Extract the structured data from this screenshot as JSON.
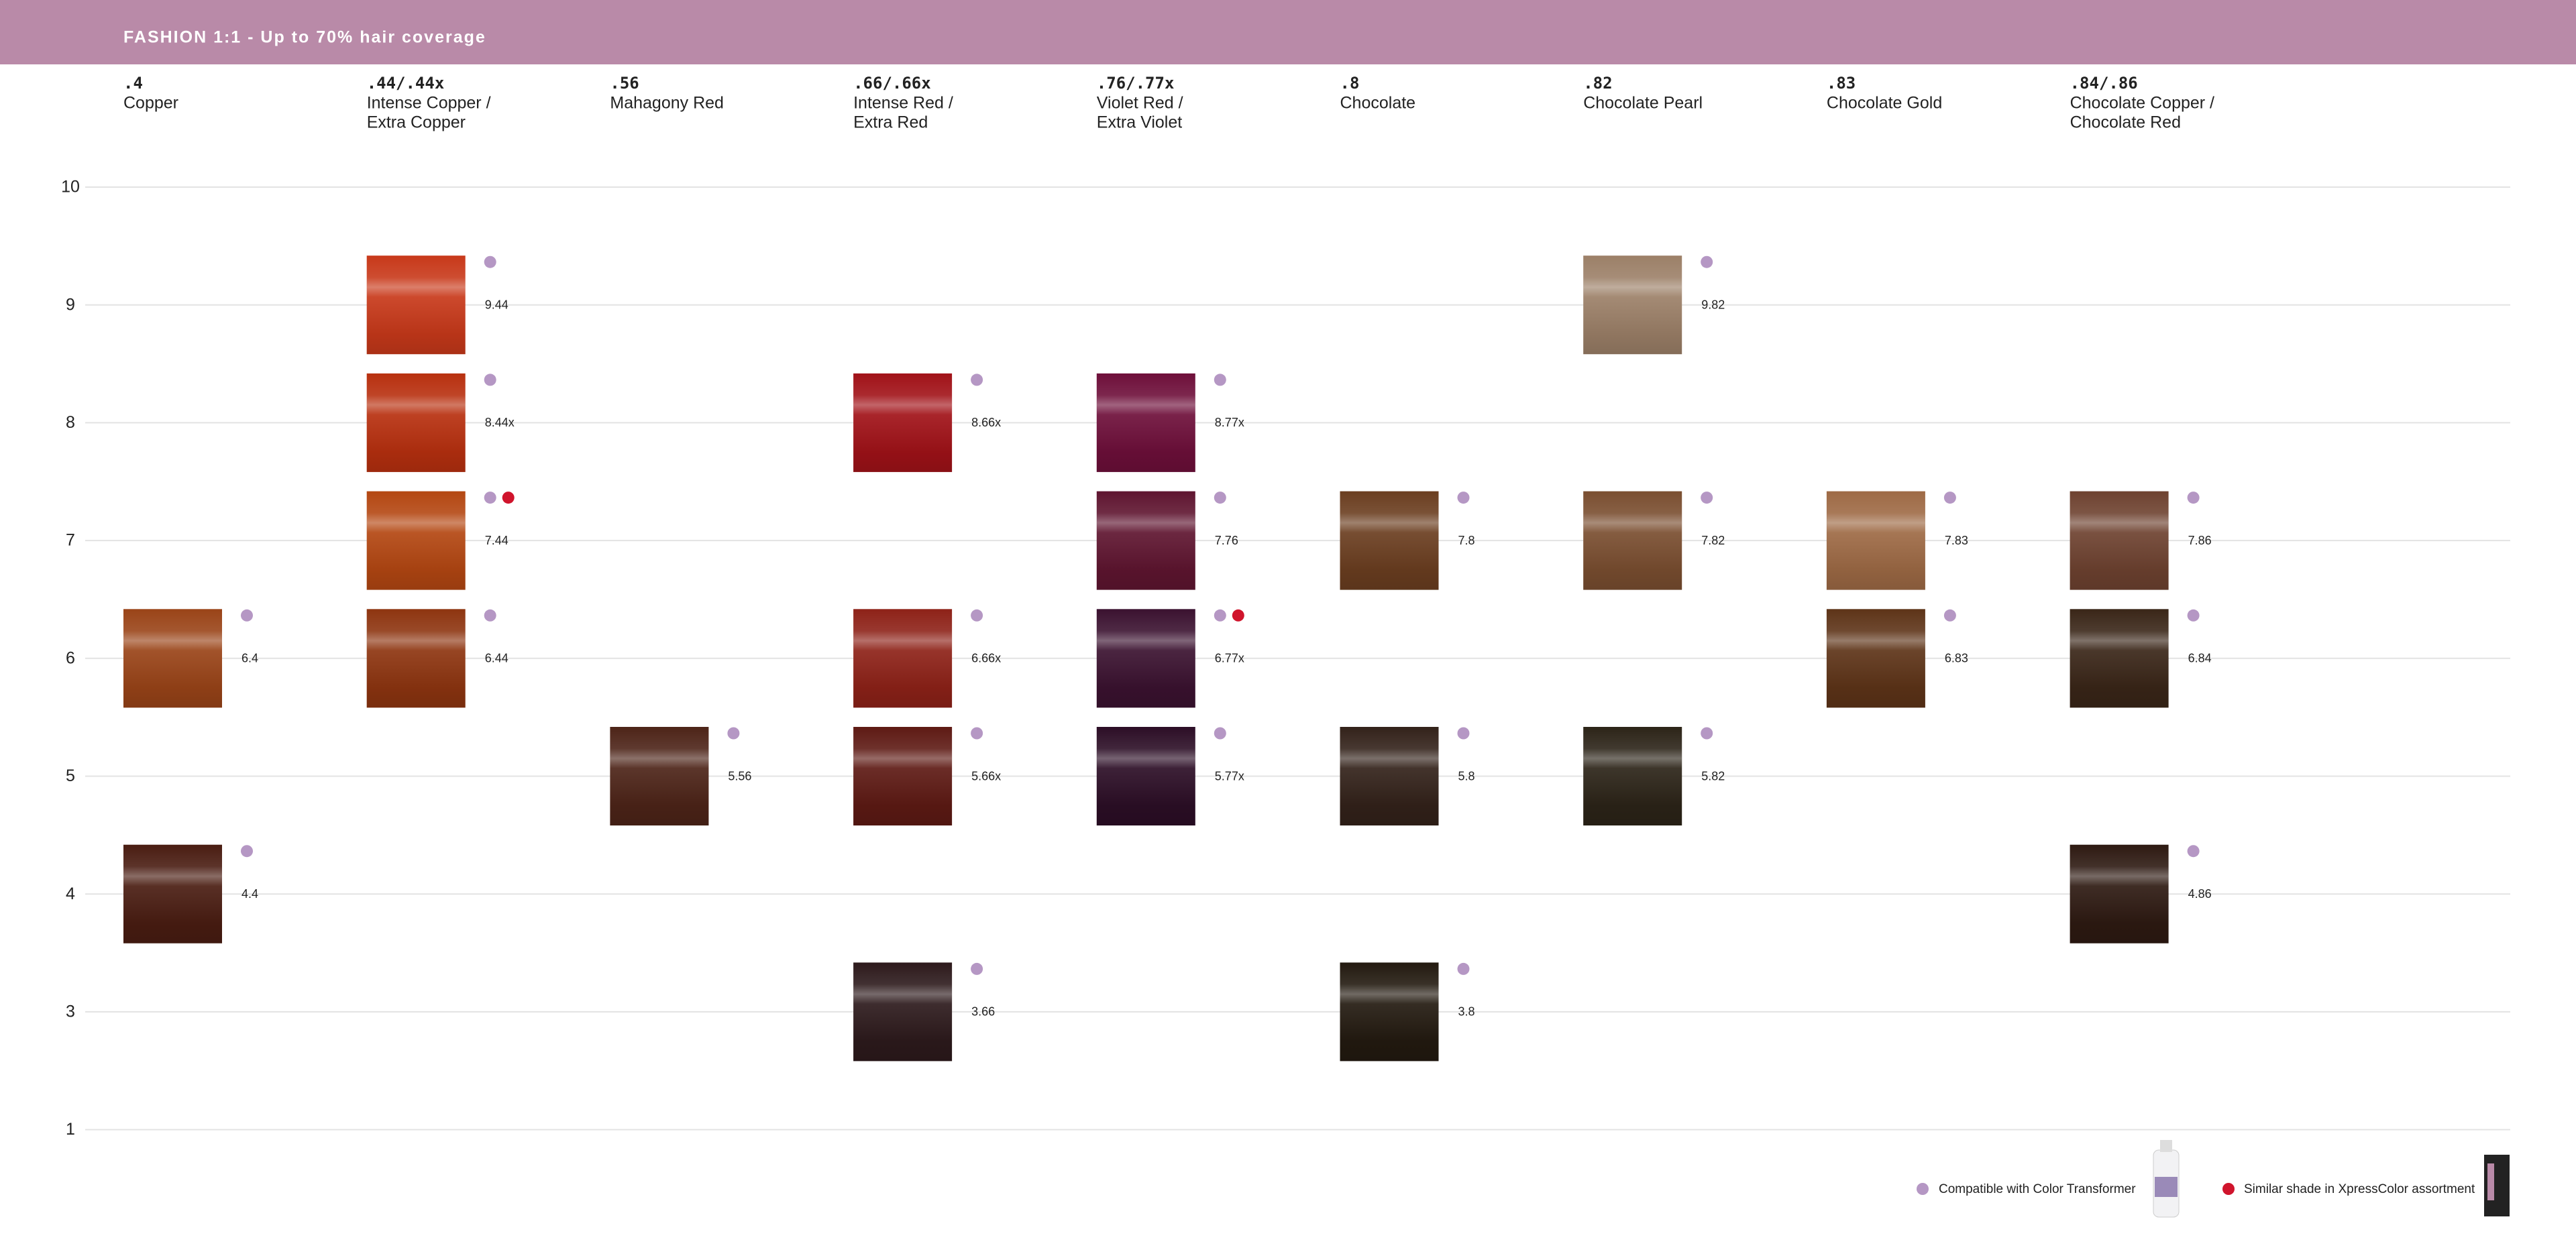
{
  "header": {
    "title": "FASHION 1:1 - Up to 70% hair coverage"
  },
  "levels": [
    "10",
    "9",
    "8",
    "7",
    "6",
    "5",
    "4",
    "3",
    "1"
  ],
  "columns": [
    {
      "code": ".4",
      "name": [
        "Copper"
      ],
      "shades": [
        null,
        null,
        null,
        null,
        {
          "label": "6.4",
          "color": "#9a4418",
          "compatible": true,
          "similar": false
        },
        null,
        {
          "label": "4.4",
          "color": "#4a1d12",
          "compatible": true,
          "similar": false
        },
        null,
        null
      ]
    },
    {
      "code": ".44/.44x",
      "name": [
        "Intense Copper /",
        "Extra Copper"
      ],
      "shades": [
        null,
        {
          "label": "9.44",
          "color": "#c8391a",
          "compatible": true,
          "similar": false
        },
        {
          "label": "8.44x",
          "color": "#b8300f",
          "compatible": true,
          "similar": false
        },
        {
          "label": "7.44",
          "color": "#b44712",
          "compatible": true,
          "similar": true
        },
        {
          "label": "6.44",
          "color": "#8e3510",
          "compatible": true,
          "similar": false
        },
        null,
        null,
        null,
        null
      ]
    },
    {
      "code": ".56",
      "name": [
        "Mahagony Red"
      ],
      "shades": [
        null,
        null,
        null,
        null,
        null,
        {
          "label": "5.56",
          "color": "#4d2418",
          "compatible": true,
          "similar": false
        },
        null,
        null,
        null
      ]
    },
    {
      "code": ".66/.66x",
      "name": [
        "Intense Red /",
        "Extra Red"
      ],
      "shades": [
        null,
        null,
        {
          "label": "8.66x",
          "color": "#a11218",
          "compatible": true,
          "similar": false
        },
        null,
        {
          "label": "6.66x",
          "color": "#8e2218",
          "compatible": true,
          "similar": false
        },
        {
          "label": "5.66x",
          "color": "#5e1a14",
          "compatible": true,
          "similar": false
        },
        null,
        {
          "label": "3.66",
          "color": "#2d1a1c",
          "compatible": true,
          "similar": false
        },
        null
      ]
    },
    {
      "code": ".76/.77x",
      "name": [
        "Violet Red /",
        "Extra Violet"
      ],
      "shades": [
        null,
        null,
        {
          "label": "8.77x",
          "color": "#6e0f3a",
          "compatible": true,
          "similar": false
        },
        {
          "label": "7.76",
          "color": "#5f1530",
          "compatible": true,
          "similar": false
        },
        {
          "label": "6.77x",
          "color": "#3b1230",
          "compatible": true,
          "similar": true
        },
        {
          "label": "5.77x",
          "color": "#2c0e26",
          "compatible": true,
          "similar": false
        },
        null,
        null,
        null
      ]
    },
    {
      "code": ".8",
      "name": [
        "Chocolate"
      ],
      "shades": [
        null,
        null,
        null,
        {
          "label": "7.8",
          "color": "#6b3e20",
          "compatible": true,
          "similar": false
        },
        null,
        {
          "label": "5.8",
          "color": "#33221a",
          "compatible": true,
          "similar": false
        },
        null,
        {
          "label": "3.8",
          "color": "#231a10",
          "compatible": true,
          "similar": false
        },
        null
      ]
    },
    {
      "code": ".82",
      "name": [
        "Chocolate Pearl"
      ],
      "shades": [
        null,
        {
          "label": "9.82",
          "color": "#9c8068",
          "compatible": true,
          "similar": false
        },
        null,
        {
          "label": "7.82",
          "color": "#7a4e30",
          "compatible": true,
          "similar": false
        },
        null,
        {
          "label": "5.82",
          "color": "#2c2418",
          "compatible": true,
          "similar": false
        },
        null,
        null,
        null
      ]
    },
    {
      "code": ".83",
      "name": [
        "Chocolate Gold"
      ],
      "shades": [
        null,
        null,
        null,
        {
          "label": "7.83",
          "color": "#9e6a45",
          "compatible": true,
          "similar": false
        },
        {
          "label": "6.83",
          "color": "#5e3418",
          "compatible": true,
          "similar": false
        },
        null,
        null,
        null,
        null
      ]
    },
    {
      "code": ".84/.86",
      "name": [
        "Chocolate Copper /",
        "Chocolate Red"
      ],
      "shades": [
        null,
        null,
        null,
        {
          "label": "7.86",
          "color": "#6e4230",
          "compatible": true,
          "similar": false
        },
        {
          "label": "6.84",
          "color": "#3a2618",
          "compatible": true,
          "similar": false
        },
        null,
        {
          "label": "4.86",
          "color": "#2e1a12",
          "compatible": true,
          "similar": false
        },
        null,
        null
      ]
    }
  ],
  "legend": {
    "compatible": "Compatible with Color Transformer",
    "similar": "Similar shade in XpressColor assortment"
  }
}
